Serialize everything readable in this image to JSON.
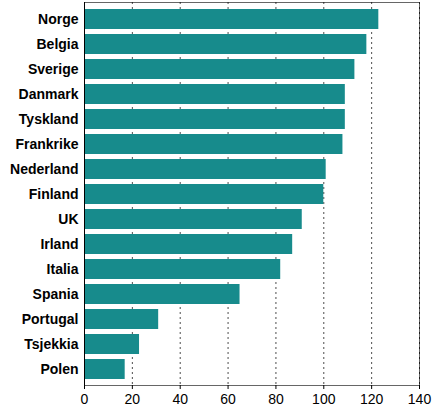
{
  "chart_data": {
    "type": "bar",
    "orientation": "horizontal",
    "categories": [
      "Norge",
      "Belgia",
      "Sverige",
      "Danmark",
      "Tyskland",
      "Frankrike",
      "Nederland",
      "Finland",
      "UK",
      "Irland",
      "Italia",
      "Spania",
      "Portugal",
      "Tsjekkia",
      "Polen"
    ],
    "values": [
      123,
      118,
      113,
      109,
      109,
      108,
      101,
      100,
      91,
      87,
      82,
      65,
      31,
      23,
      17
    ],
    "color": "#178b8c",
    "xlim": [
      0,
      140
    ],
    "xticks": [
      0,
      20,
      40,
      60,
      80,
      100,
      120,
      140
    ],
    "grid": true
  }
}
